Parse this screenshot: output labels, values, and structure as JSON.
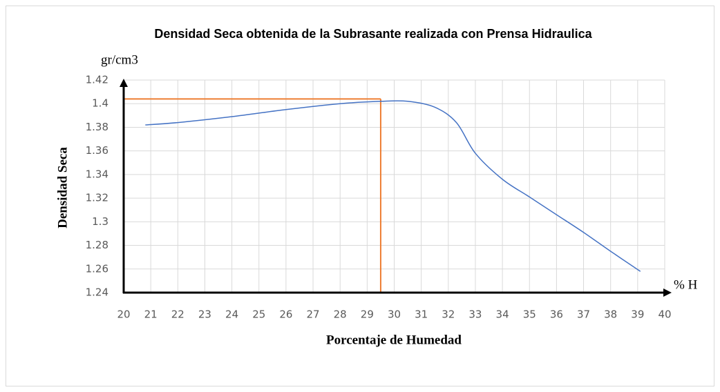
{
  "chart_data": {
    "type": "line",
    "title": "Densidad Seca obtenida de la Subrasante realizada con Prensa Hidraulica",
    "x_label": "Porcentaje de Humedad",
    "y_label": "Densidad Seca",
    "y_unit": "gr/cm3",
    "x_unit": "% H",
    "xlim": [
      20,
      40
    ],
    "xticks": [
      20,
      21,
      22,
      23,
      24,
      25,
      26,
      27,
      28,
      29,
      30,
      31,
      32,
      33,
      34,
      35,
      36,
      37,
      38,
      39,
      40
    ],
    "ylim": [
      1.24,
      1.42
    ],
    "yticks": [
      1.24,
      1.26,
      1.28,
      1.3,
      1.32,
      1.34,
      1.36,
      1.38,
      1.4,
      1.42
    ],
    "grid": true,
    "series": [
      {
        "color": "#4472c4",
        "x": [
          20.8,
          22,
          24,
          26,
          28,
          29.5,
          30.5,
          31.5,
          32.3,
          33,
          34,
          35,
          36,
          37,
          38,
          39.1
        ],
        "values": [
          1.382,
          1.384,
          1.389,
          1.395,
          1.4,
          1.402,
          1.402,
          1.397,
          1.384,
          1.358,
          1.336,
          1.321,
          1.306,
          1.291,
          1.275,
          1.258
        ]
      }
    ],
    "reference": {
      "color": "#ed7d31",
      "x": 29.5,
      "y": 1.404
    }
  }
}
